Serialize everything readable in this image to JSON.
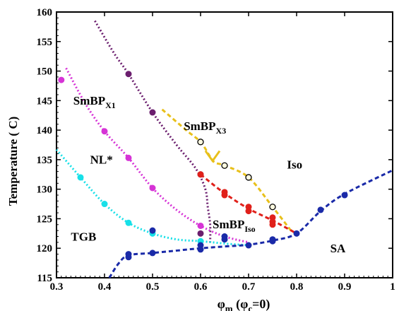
{
  "chart_data": {
    "type": "scatter",
    "title": "",
    "xlabel_main": "φ",
    "xlabel_sub": "m",
    "xlabel_rest": " (φ",
    "xlabel_sub2": "c",
    "xlabel_end": "=0)",
    "ylabel": "Temperature ( C)",
    "xlim": [
      0.3,
      1.0
    ],
    "ylim": [
      115,
      160
    ],
    "xticks": [
      "0.3",
      "0.4",
      "0.5",
      "0.6",
      "0.7",
      "0.8",
      "0.9",
      "1"
    ],
    "yticks": [
      "115",
      "120",
      "125",
      "130",
      "135",
      "140",
      "145",
      "150",
      "155",
      "160"
    ],
    "grid": false,
    "region_labels": [
      {
        "id": "smbpx1",
        "base": "SmBP",
        "sub": "X1"
      },
      {
        "id": "smbpx3",
        "base": "SmBP",
        "sub": "X3"
      },
      {
        "id": "nl",
        "base": "NL*",
        "sub": ""
      },
      {
        "id": "iso",
        "base": "Iso",
        "sub": ""
      },
      {
        "id": "smbpiso",
        "base": "SmBP",
        "sub": "Iso"
      },
      {
        "id": "tgb",
        "base": "TGB",
        "sub": ""
      },
      {
        "id": "sa",
        "base": "SA",
        "sub": ""
      }
    ],
    "series": [
      {
        "id": "purple",
        "color": "#6b1e6e",
        "dash": "2,3",
        "marker": "filled",
        "points": [
          [
            0.45,
            149.5
          ],
          [
            0.5,
            143
          ],
          [
            0.6,
            132.5
          ],
          [
            0.6,
            122.5
          ]
        ],
        "curve": [
          [
            0.38,
            158.5
          ],
          [
            0.42,
            153
          ],
          [
            0.45,
            149.5
          ],
          [
            0.5,
            143
          ],
          [
            0.55,
            137.5
          ],
          [
            0.59,
            133.5
          ],
          [
            0.61,
            130
          ],
          [
            0.615,
            127
          ],
          [
            0.62,
            124
          ],
          [
            0.62,
            121
          ]
        ]
      },
      {
        "id": "magenta",
        "color": "#d633d6",
        "dash": "2,3",
        "marker": "filled",
        "points": [
          [
            0.31,
            148.5
          ],
          [
            0.4,
            139.8
          ],
          [
            0.45,
            135.3
          ],
          [
            0.5,
            130.2
          ],
          [
            0.6,
            123.8
          ]
        ],
        "curve": [
          [
            0.32,
            150.5
          ],
          [
            0.36,
            144.5
          ],
          [
            0.4,
            139.8
          ],
          [
            0.45,
            135.3
          ],
          [
            0.5,
            130.2
          ],
          [
            0.55,
            126.5
          ],
          [
            0.6,
            123.8
          ],
          [
            0.65,
            122
          ],
          [
            0.7,
            121
          ]
        ]
      },
      {
        "id": "cyan",
        "color": "#17e0e8",
        "dash": "2,3",
        "marker": "filled",
        "points": [
          [
            0.35,
            132
          ],
          [
            0.4,
            127.5
          ],
          [
            0.45,
            124.3
          ],
          [
            0.5,
            122.5
          ],
          [
            0.6,
            121.2
          ]
        ],
        "curve": [
          [
            0.3,
            136.7
          ],
          [
            0.35,
            132
          ],
          [
            0.4,
            127.5
          ],
          [
            0.45,
            124.3
          ],
          [
            0.5,
            122.5
          ],
          [
            0.55,
            121.5
          ],
          [
            0.6,
            121.2
          ],
          [
            0.65,
            120.8
          ],
          [
            0.7,
            120.5
          ]
        ]
      },
      {
        "id": "yellow",
        "color": "#e8c01a",
        "dash": "6,4",
        "marker": "open",
        "points": [
          [
            0.6,
            138
          ],
          [
            0.65,
            134
          ],
          [
            0.7,
            132
          ],
          [
            0.75,
            127
          ]
        ],
        "curve": [
          [
            0.52,
            143.5
          ],
          [
            0.57,
            140
          ],
          [
            0.6,
            138
          ],
          [
            0.62,
            135.5
          ],
          [
            0.63,
            134.5
          ],
          [
            0.65,
            134
          ],
          [
            0.7,
            132
          ],
          [
            0.75,
            127
          ],
          [
            0.79,
            122.8
          ]
        ]
      },
      {
        "id": "red",
        "color": "#e0201a",
        "dash": "6,4",
        "marker": "filled",
        "points": [
          [
            0.6,
            132.5
          ],
          [
            0.65,
            129.5
          ],
          [
            0.65,
            129
          ],
          [
            0.7,
            127
          ],
          [
            0.7,
            126.3
          ],
          [
            0.75,
            125.2
          ],
          [
            0.75,
            124.5
          ],
          [
            0.75,
            124
          ]
        ],
        "curve": [
          [
            0.6,
            132.5
          ],
          [
            0.65,
            129.3
          ],
          [
            0.7,
            126.7
          ],
          [
            0.75,
            124.7
          ],
          [
            0.8,
            122.5
          ]
        ]
      },
      {
        "id": "blue",
        "color": "#1a2aa8",
        "dash": "6,4",
        "marker": "filled",
        "points": [
          [
            0.45,
            119
          ],
          [
            0.45,
            118.5
          ],
          [
            0.5,
            119.2
          ],
          [
            0.5,
            123
          ],
          [
            0.6,
            119.8
          ],
          [
            0.6,
            120.5
          ],
          [
            0.65,
            121.5
          ],
          [
            0.65,
            122
          ],
          [
            0.7,
            120.5
          ],
          [
            0.75,
            121.2
          ],
          [
            0.75,
            121.5
          ],
          [
            0.8,
            122.5
          ],
          [
            0.85,
            126.5
          ],
          [
            0.9,
            129
          ]
        ],
        "curve": [
          [
            0.41,
            115
          ],
          [
            0.43,
            117.5
          ],
          [
            0.45,
            118.8
          ],
          [
            0.5,
            119.2
          ],
          [
            0.55,
            119.6
          ],
          [
            0.6,
            120
          ],
          [
            0.65,
            120.3
          ],
          [
            0.7,
            120.6
          ],
          [
            0.75,
            121.3
          ],
          [
            0.8,
            122.5
          ],
          [
            0.85,
            126.3
          ],
          [
            0.9,
            129.2
          ],
          [
            1.0,
            133.2
          ]
        ]
      }
    ]
  }
}
